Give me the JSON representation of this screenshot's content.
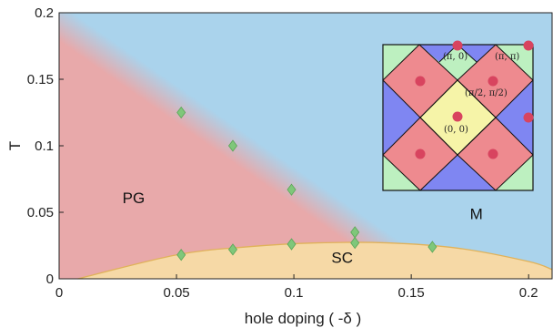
{
  "chart_data": {
    "type": "scatter",
    "xlabel": "hole doping ( -δ )",
    "ylabel": "T",
    "xlim": [
      0,
      0.21
    ],
    "ylim": [
      0,
      0.2
    ],
    "x_ticks": [
      0,
      0.05,
      0.1,
      0.15,
      0.2
    ],
    "x_tick_labels": [
      "0",
      "0.05",
      "0.1",
      "0.15",
      "0.2"
    ],
    "y_ticks": [
      0,
      0.05,
      0.1,
      0.15,
      0.2
    ],
    "y_tick_labels": [
      "0",
      "0.05",
      "0.1",
      "0.15",
      "0.2"
    ],
    "regions": [
      {
        "label": "PG",
        "color": "#e8a9aa",
        "label_x": 0.027,
        "label_y": 0.057
      },
      {
        "label": "M",
        "color": "#aad3ec",
        "label_x": 0.175,
        "label_y": 0.045
      },
      {
        "label": "SC",
        "color": "#f6d9a6",
        "label_x": 0.116,
        "label_y": 0.012
      }
    ],
    "pg_boundary": [
      [
        0.0,
        0.19
      ],
      [
        0.13,
        0.03
      ]
    ],
    "sc_dome": [
      [
        0.008,
        0.0
      ],
      [
        0.05,
        0.018
      ],
      [
        0.08,
        0.024
      ],
      [
        0.11,
        0.027
      ],
      [
        0.14,
        0.027
      ],
      [
        0.17,
        0.023
      ],
      [
        0.2,
        0.013
      ],
      [
        0.21,
        0.007
      ]
    ],
    "series": [
      {
        "marker": "diamond",
        "color": "#7fc77a",
        "points": [
          [
            0.052,
            0.125
          ],
          [
            0.074,
            0.1
          ],
          [
            0.099,
            0.067
          ],
          [
            0.126,
            0.035
          ],
          [
            0.052,
            0.018
          ],
          [
            0.074,
            0.022
          ],
          [
            0.099,
            0.026
          ],
          [
            0.126,
            0.027
          ],
          [
            0.159,
            0.024
          ]
        ]
      }
    ],
    "inset": {
      "colors": {
        "green": "#bdf0c0",
        "blue": "#7f86f2",
        "red": "#ee8a8f",
        "yellow": "#f6f4a8",
        "dot": "#d8445f"
      },
      "labels": [
        "(π, 0)",
        "(π, π)",
        "(π/2, π/2)",
        "(0, 0)"
      ]
    }
  }
}
